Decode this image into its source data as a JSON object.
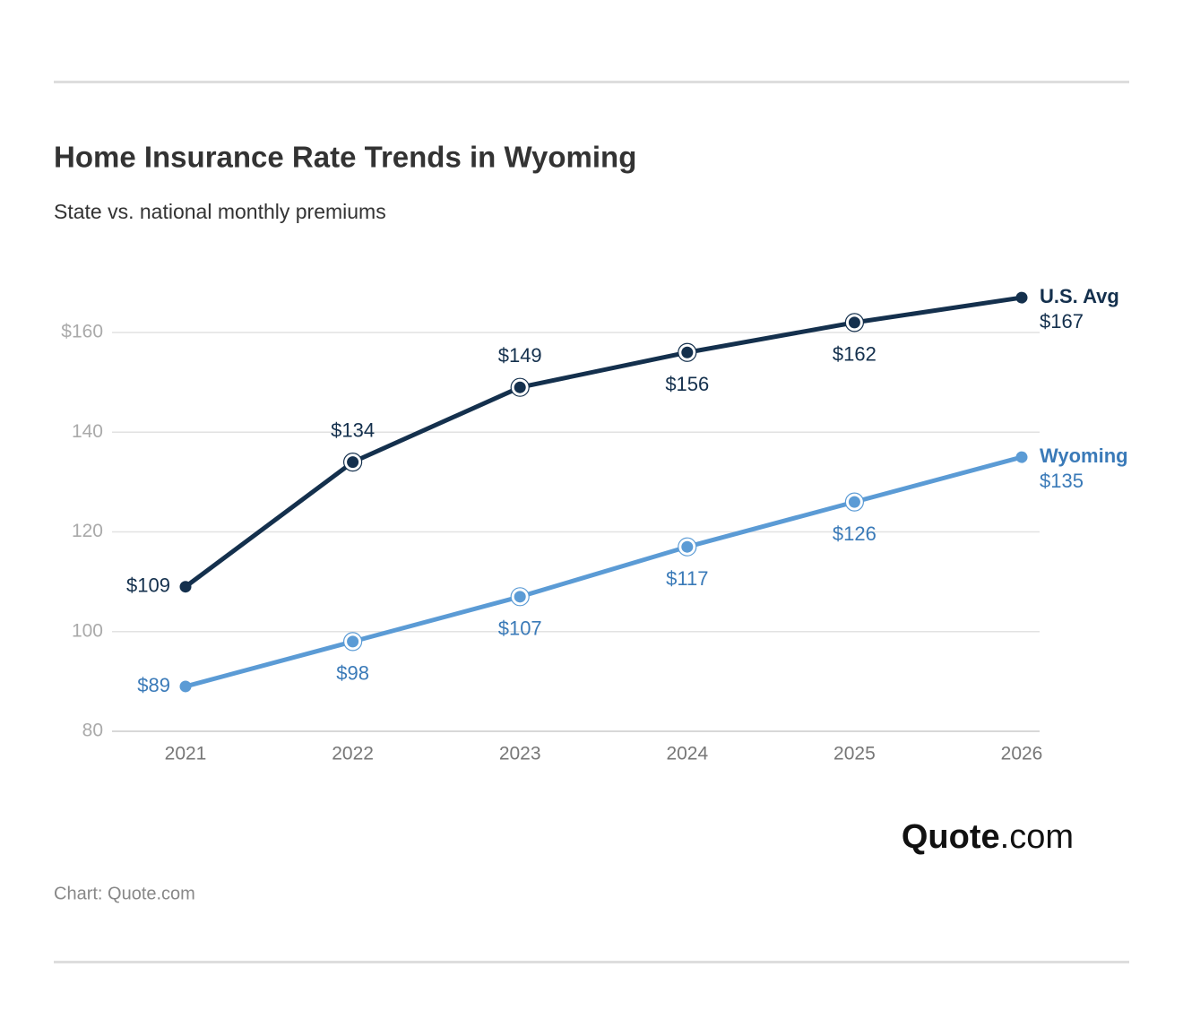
{
  "chart_data": {
    "type": "line",
    "title": "Home Insurance Rate Trends in Wyoming",
    "subtitle": "State vs. national monthly premiums",
    "categories": [
      "2021",
      "2022",
      "2023",
      "2024",
      "2025",
      "2026"
    ],
    "series": [
      {
        "name": "U.S. Avg",
        "color": "#14304d",
        "values": [
          109,
          134,
          149,
          156,
          162,
          167
        ],
        "value_labels": [
          "$109",
          "$134",
          "$149",
          "$156",
          "$162",
          "$167"
        ]
      },
      {
        "name": "Wyoming",
        "color": "#5b9bd5",
        "label_color": "#3a7ab8",
        "values": [
          89,
          98,
          107,
          117,
          126,
          135
        ],
        "value_labels": [
          "$89",
          "$98",
          "$107",
          "$117",
          "$126",
          "$135"
        ]
      }
    ],
    "ylim": [
      80,
      160
    ],
    "yticks": [
      80,
      100,
      120,
      140,
      {
        "value": 160,
        "label": "$160"
      }
    ],
    "grid": true,
    "logo": {
      "bold": "Quote",
      "light": ".com"
    },
    "source": "Chart: Quote.com"
  }
}
